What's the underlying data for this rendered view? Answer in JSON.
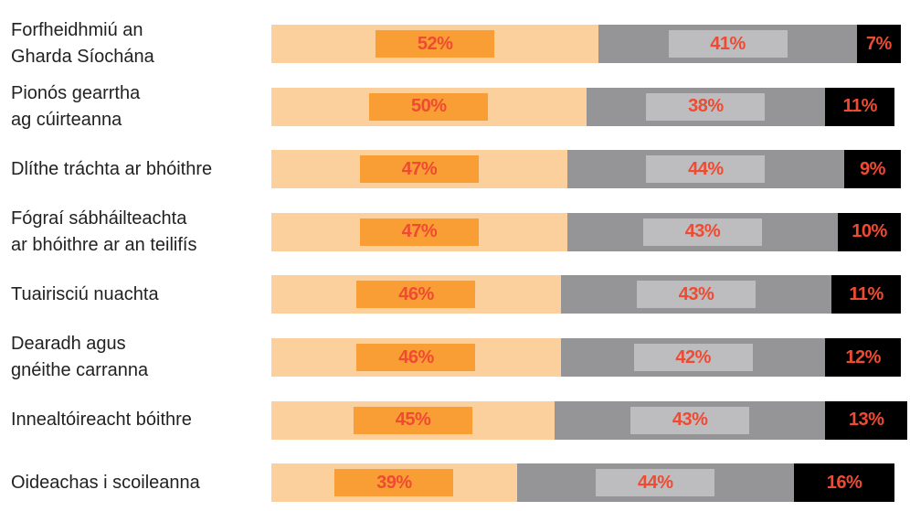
{
  "chart_data": {
    "type": "stacked-bar-horizontal",
    "categories": [
      "Forfheidhmiú an\nGharda Síochána",
      "Pionós gearrtha\nag cúirteanna",
      "Dlíthe tráchta ar bhóithre",
      "Fógraí sábháilteachta\nar bhóithre ar an teilifís",
      "Tuairisciú nuachta",
      "Dearadh agus\ngnéithe carranna",
      "Innealtóireacht bóithre",
      "Oideachas i scoileanna"
    ],
    "xlim": [
      0,
      100
    ],
    "label_color": "#ef4a32",
    "series": [
      {
        "color": "#fbd09c",
        "box_color": "#f99e35",
        "values": [
          52,
          50,
          47,
          47,
          46,
          46,
          45,
          39
        ],
        "value_labels": [
          "52%",
          "50%",
          "47%",
          "47%",
          "46%",
          "46%",
          "45%",
          "39%"
        ]
      },
      {
        "color": "#959597",
        "box_color": "#bdbdbf",
        "values": [
          41,
          38,
          44,
          43,
          43,
          42,
          43,
          44
        ],
        "value_labels": [
          "41%",
          "38%",
          "44%",
          "43%",
          "43%",
          "42%",
          "43%",
          "44%"
        ]
      },
      {
        "color": "#000000",
        "values": [
          7,
          11,
          9,
          10,
          11,
          12,
          13,
          16
        ],
        "value_labels": [
          "7%",
          "11%",
          "9%",
          "10%",
          "11%",
          "12%",
          "13%",
          "16%"
        ]
      }
    ]
  }
}
